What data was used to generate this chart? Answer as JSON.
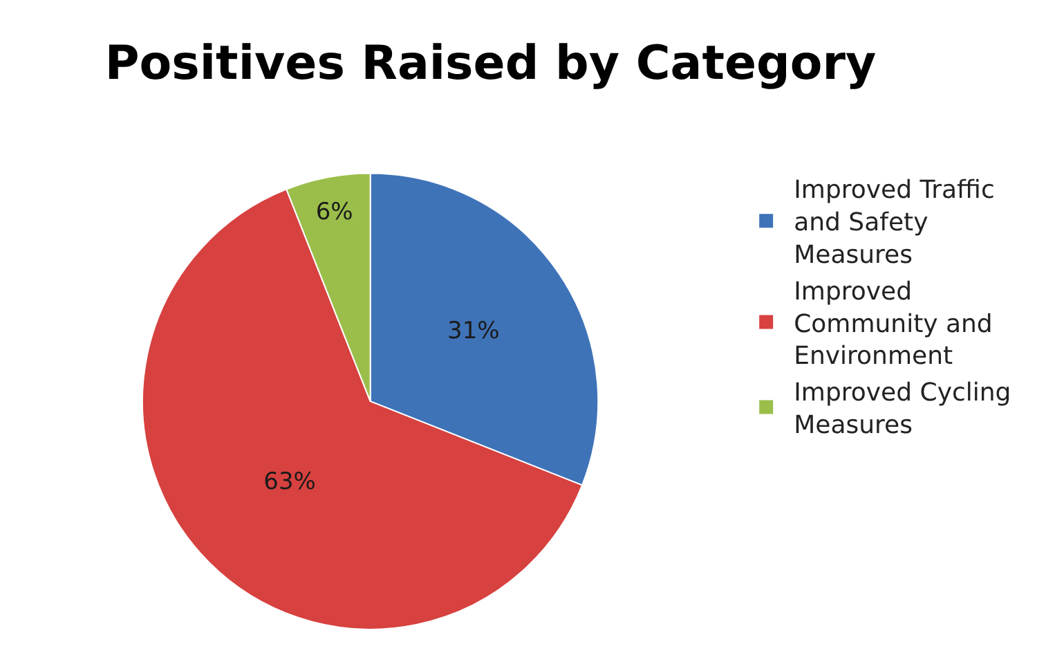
{
  "chart_data": {
    "type": "pie",
    "title": "Positives Raised by Category",
    "categories": [
      "Improved Traffic and Safety Measures",
      "Improved Community and Environment",
      "Improved Cycling Measures"
    ],
    "values": [
      31,
      63,
      6
    ],
    "colors": [
      "#3f73b8",
      "#d7413f",
      "#9bbe4a"
    ],
    "value_labels": [
      "31%",
      "63%",
      "6%"
    ],
    "legend": "right"
  }
}
